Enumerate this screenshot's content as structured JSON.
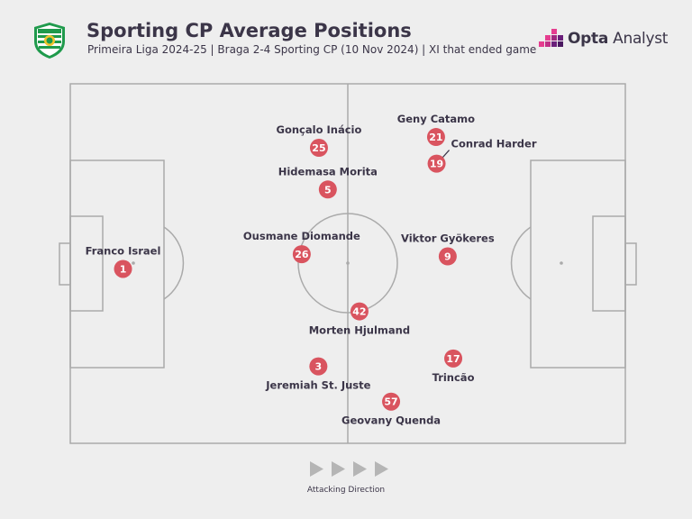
{
  "header": {
    "title": "Sporting CP Average Positions",
    "subtitle": "Primeira Liga 2024-25 | Braga 2-4 Sporting CP (10 Nov 2024) | XI that ended game",
    "club_badge_text": "SPORTING CLUBE DE PORTUGAL",
    "brand_word1": "Opta",
    "brand_word2": "Analyst"
  },
  "colors": {
    "background": "#eeeeee",
    "pitch_lines": "#aaaaaa",
    "marker": "#d9545f",
    "text": "#3b3548",
    "badge_green": "#1f9a4c",
    "brand_pink": "#e53d8f",
    "brand_purple": "#6a1f7a"
  },
  "attacking_direction": {
    "label": "Attacking Direction",
    "icon": "play-arrow-icon",
    "arrows": 4
  },
  "chart_data": {
    "type": "scatter",
    "title": "Sporting CP Average Positions",
    "subtitle": "Primeira Liga 2024-25 | Braga 2-4 Sporting CP (10 Nov 2024) | XI that ended game",
    "xlim": [
      0,
      100
    ],
    "ylim": [
      0,
      100
    ],
    "points": [
      {
        "number": "1",
        "name": "Franco Israel",
        "x": 9.5,
        "y": 48.5
      },
      {
        "number": "25",
        "name": "Gonçalo Inácio",
        "x": 44.8,
        "y": 82.2
      },
      {
        "number": "5",
        "name": "Hidemasa Morita",
        "x": 46.4,
        "y": 70.6
      },
      {
        "number": "26",
        "name": "Ousmane Diomande",
        "x": 41.7,
        "y": 52.6
      },
      {
        "number": "42",
        "name": "Morten Hjulmand",
        "x": 52.1,
        "y": 36.7
      },
      {
        "number": "3",
        "name": "Jeremiah St. Juste",
        "x": 44.7,
        "y": 21.4
      },
      {
        "number": "57",
        "name": "Geovany Quenda",
        "x": 57.8,
        "y": 11.6
      },
      {
        "number": "17",
        "name": "Trincão",
        "x": 69.0,
        "y": 23.6
      },
      {
        "number": "9",
        "name": "Viktor Gyökeres",
        "x": 68.0,
        "y": 52.0
      },
      {
        "number": "21",
        "name": "Geny Catamo",
        "x": 65.9,
        "y": 85.2
      },
      {
        "number": "19",
        "name": "Conrad Harder",
        "x": 66.0,
        "y": 77.8
      }
    ]
  }
}
